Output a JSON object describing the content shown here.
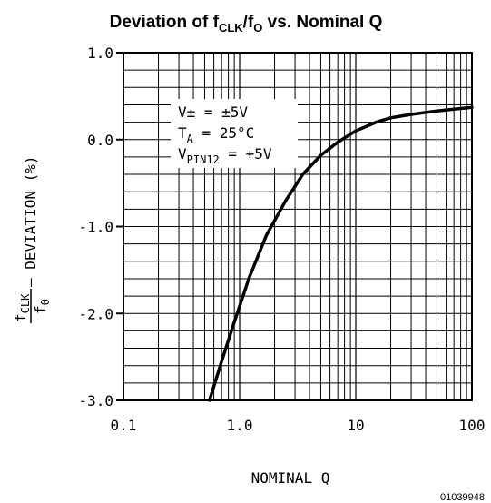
{
  "chart_data": {
    "type": "line",
    "title": {
      "prefix": "Deviation of f",
      "sub1": "CLK",
      "mid": "/f",
      "sub2": "O",
      "suffix": " vs. Nominal Q"
    },
    "xlabel": "NOMINAL Q",
    "ylabel": {
      "frac_num": "f",
      "frac_num_sub": "CLK",
      "frac_den": "f",
      "frac_den_sub": "0",
      "rest": " – DEVIATION (%)"
    },
    "x_scale": "log",
    "xlim": [
      0.1,
      100
    ],
    "ylim": [
      -3.0,
      1.0
    ],
    "x_ticks": [
      "0.1",
      "1.0",
      "10",
      "100"
    ],
    "y_ticks": [
      "1.0",
      "0.0",
      "-1.0",
      "-2.0",
      "-3.0"
    ],
    "grid": true,
    "series": [
      {
        "x": [
          0.55,
          0.7,
          0.9,
          1.2,
          1.7,
          2.5,
          3.5,
          5.0,
          7.0,
          10.0,
          15.0,
          20.0,
          30.0,
          50.0,
          70.0,
          100.0
        ],
        "y": [
          -3.0,
          -2.55,
          -2.1,
          -1.6,
          -1.1,
          -0.7,
          -0.4,
          -0.18,
          -0.03,
          0.1,
          0.2,
          0.25,
          0.29,
          0.33,
          0.35,
          0.37
        ]
      }
    ],
    "annotations": {
      "line1_a": "V± = ±5V",
      "line2_a": "T",
      "line2_sub": "A",
      "line2_b": " = 25°C",
      "line3_a": "V",
      "line3_sub": "PIN12",
      "line3_b": " = +5V"
    },
    "figure_id": "01039948"
  }
}
